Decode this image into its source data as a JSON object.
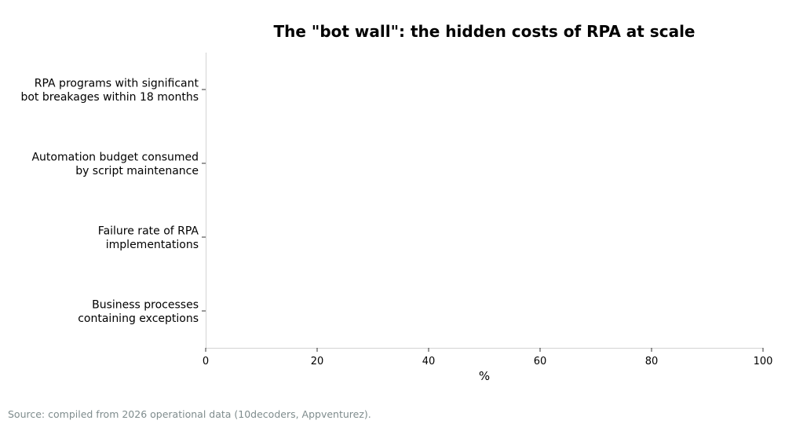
{
  "chart_data": {
    "type": "bar",
    "orientation": "horizontal",
    "title": "The \"bot wall\": the hidden costs of RPA at scale",
    "xlabel": "%",
    "ylabel": "",
    "xlim": [
      0,
      100
    ],
    "x_ticks": [
      "0",
      "20",
      "40",
      "60",
      "80",
      "100"
    ],
    "categories": [
      [
        "RPA programs with significant",
        "bot breakages within 18 months"
      ],
      [
        "Automation budget consumed",
        "by script maintenance"
      ],
      [
        "Failure rate of RPA",
        "implementations"
      ],
      [
        "Business processes",
        "containing exceptions"
      ]
    ],
    "values": [
      null,
      null,
      null,
      null
    ],
    "grid": false,
    "legend": "none"
  },
  "footer": {
    "source": "Source: compiled from 2026 operational data (10decoders, Appventurez)."
  }
}
